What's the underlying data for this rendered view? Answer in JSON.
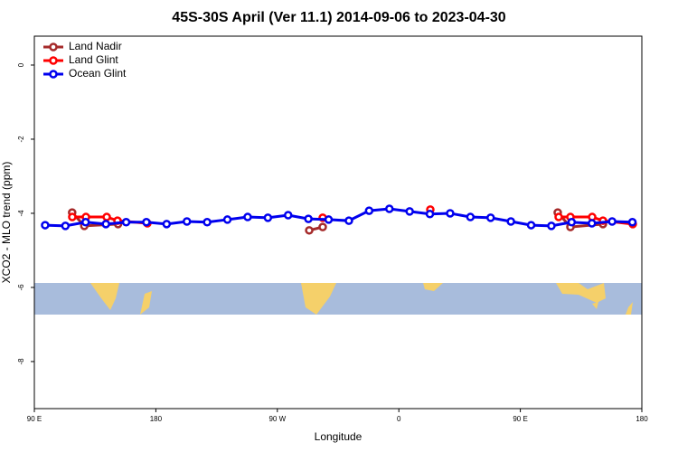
{
  "chart_data": {
    "type": "line",
    "title": "45S-30S April (Ver 11.1)   2014-09-06 to 2023-04-30",
    "xlabel": "Longitude",
    "ylabel": "XCO2 - MLO trend (ppm)",
    "xlim": [
      90,
      540
    ],
    "ylim": [
      -9.27,
      0.78
    ],
    "xticks": [
      {
        "value": 90,
        "label": "90 E"
      },
      180,
      {
        "value": 270,
        "label": "90 W"
      },
      {
        "value": 360,
        "label": "0"
      },
      {
        "value": 450,
        "label": "90 E"
      },
      {
        "value": 540,
        "label": "180"
      }
    ],
    "yticks": [
      -8,
      -6,
      -4,
      -2,
      0
    ],
    "legend": "top-left",
    "series": [
      {
        "name": "Land Nadir",
        "color": "#a52a2a",
        "x": [
          118,
          127,
          152,
          null,
          293.6,
          303.6,
          null,
          477.7,
          487.1,
          511.2
        ],
        "values": [
          -3.98,
          -4.34,
          -4.29,
          null,
          -4.46,
          -4.37,
          null,
          -3.98,
          -4.37,
          -4.29
        ]
      },
      {
        "name": "Land Glint",
        "color": "#ff0000",
        "x": [
          118.1,
          128.2,
          143.6,
          151.6,
          173.7,
          null,
          303.6,
          null,
          383.3,
          null,
          478.4,
          487.1,
          503.2,
          511.2,
          533.3
        ],
        "values": [
          -4.1,
          -4.1,
          -4.1,
          -4.2,
          -4.27,
          null,
          -4.12,
          null,
          -3.9,
          null,
          -4.1,
          -4.1,
          -4.1,
          -4.2,
          -4.29
        ]
      },
      {
        "name": "Ocean Glint",
        "color": "#0000ee",
        "x": [
          98,
          113,
          128,
          143,
          158,
          173,
          188,
          203,
          218,
          233,
          248,
          263,
          278,
          293,
          308,
          323,
          338,
          353,
          368,
          383,
          398,
          413,
          428,
          443,
          458,
          473,
          488,
          503,
          518,
          533
        ],
        "values": [
          -4.32,
          -4.34,
          -4.24,
          -4.29,
          -4.24,
          -4.24,
          -4.29,
          -4.22,
          -4.24,
          -4.17,
          -4.1,
          -4.12,
          -4.05,
          -4.15,
          -4.17,
          -4.2,
          -3.93,
          -3.88,
          -3.95,
          -4.02,
          -4.0,
          -4.1,
          -4.12,
          -4.22,
          -4.32,
          -4.34,
          -4.24,
          -4.27,
          -4.22,
          -4.24
        ]
      }
    ]
  }
}
